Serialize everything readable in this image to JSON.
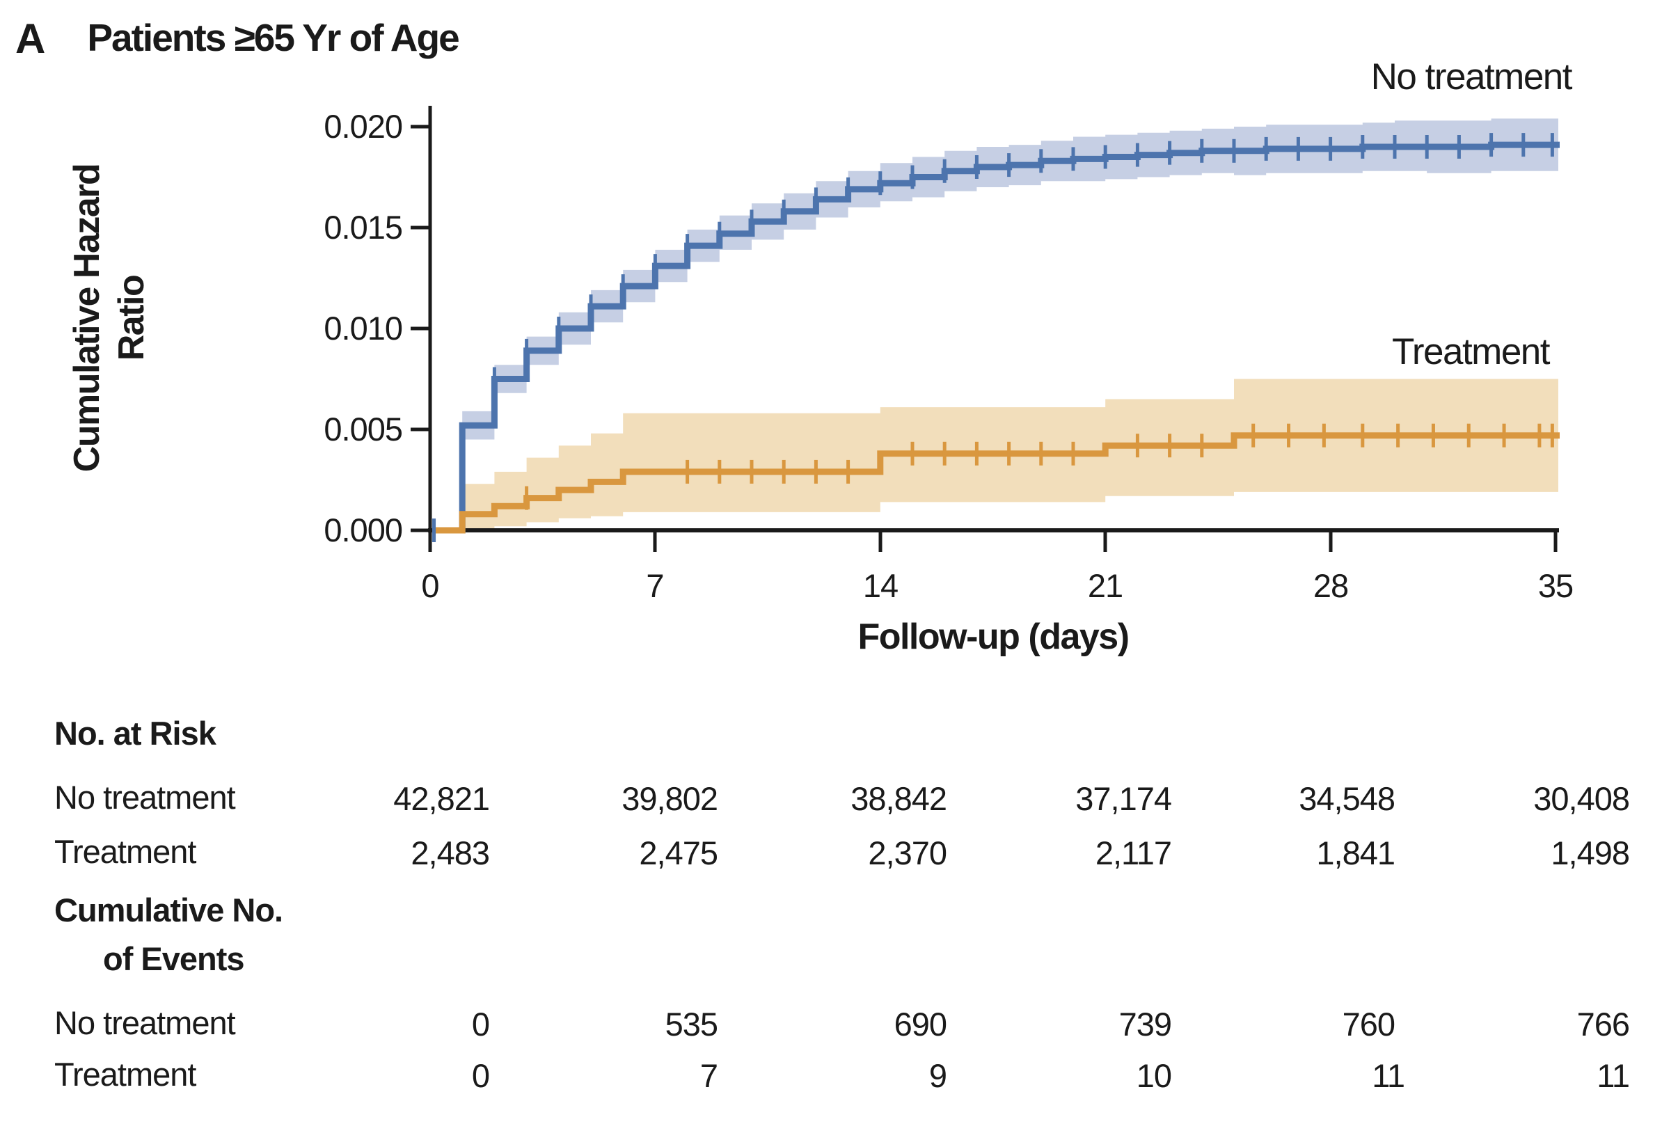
{
  "panel_label": "A",
  "title": "Patients ≥65 Yr of Age",
  "colors": {
    "no_treatment_line": "#4d74ad",
    "no_treatment_band": "#c6cfe4",
    "treatment_line": "#d9973f",
    "treatment_band": "#f2debb",
    "axis": "#1a1a1a"
  },
  "chart_data": {
    "type": "line",
    "subtype": "step-cumulative-hazard-with-ci-bands",
    "xlabel": "Follow-up (days)",
    "ylabel_line1": "Cumulative Hazard",
    "ylabel_line2": "Ratio",
    "xlim": [
      0,
      35
    ],
    "ylim": [
      0.0,
      0.02
    ],
    "xticks": [
      "0",
      "7",
      "14",
      "21",
      "28",
      "35"
    ],
    "yticks": [
      "0.000",
      "0.005",
      "0.010",
      "0.015",
      "0.020"
    ],
    "grid": false,
    "legend_position": "labels-at-line-ends",
    "series": [
      {
        "name": "No treatment",
        "color": "#4d74ad",
        "band_color": "#c6cfe4",
        "steps": [
          [
            0,
            0,
            null,
            null
          ],
          [
            1,
            0.0052,
            0.0045,
            0.0059
          ],
          [
            2,
            0.0075,
            0.0068,
            0.0082
          ],
          [
            3,
            0.0089,
            0.0082,
            0.0096
          ],
          [
            4,
            0.01,
            0.0092,
            0.0108
          ],
          [
            5,
            0.0111,
            0.0103,
            0.0119
          ],
          [
            6,
            0.0121,
            0.0113,
            0.0129
          ],
          [
            7,
            0.0131,
            0.0123,
            0.0139
          ],
          [
            8,
            0.0141,
            0.0133,
            0.0149
          ],
          [
            9,
            0.0147,
            0.0139,
            0.0156
          ],
          [
            10,
            0.0153,
            0.0144,
            0.0162
          ],
          [
            11,
            0.0158,
            0.0149,
            0.0167
          ],
          [
            12,
            0.0164,
            0.0155,
            0.0173
          ],
          [
            13,
            0.0169,
            0.016,
            0.0178
          ],
          [
            14,
            0.0172,
            0.0163,
            0.0182
          ],
          [
            15,
            0.0175,
            0.0165,
            0.0185
          ],
          [
            16,
            0.0178,
            0.0168,
            0.0188
          ],
          [
            17,
            0.018,
            0.017,
            0.019
          ],
          [
            18,
            0.0181,
            0.0171,
            0.0191
          ],
          [
            19,
            0.0183,
            0.0173,
            0.0193
          ],
          [
            20,
            0.0184,
            0.0173,
            0.0195
          ],
          [
            21,
            0.0185,
            0.0174,
            0.0196
          ],
          [
            22,
            0.0186,
            0.0175,
            0.0197
          ],
          [
            23,
            0.0187,
            0.0176,
            0.0198
          ],
          [
            24,
            0.0188,
            0.0177,
            0.0199
          ],
          [
            25,
            0.0188,
            0.0176,
            0.02
          ],
          [
            26,
            0.0189,
            0.0177,
            0.0201
          ],
          [
            27,
            0.0189,
            0.0177,
            0.0201
          ],
          [
            28,
            0.0189,
            0.0177,
            0.0201
          ],
          [
            29,
            0.019,
            0.0178,
            0.0202
          ],
          [
            30,
            0.019,
            0.0178,
            0.0203
          ],
          [
            31,
            0.019,
            0.0177,
            0.0203
          ],
          [
            32,
            0.019,
            0.0177,
            0.0203
          ],
          [
            33,
            0.0191,
            0.0178,
            0.0204
          ],
          [
            34,
            0.0191,
            0.0178,
            0.0204
          ]
        ],
        "censor_days": [
          0.12,
          2,
          3,
          4,
          5,
          6,
          7,
          8,
          9,
          10,
          11,
          12,
          13,
          14,
          15,
          16,
          17,
          18,
          19,
          20,
          21,
          22,
          23,
          24,
          25,
          26,
          27,
          28,
          29,
          30,
          31,
          32,
          33,
          34,
          34.9
        ]
      },
      {
        "name": "Treatment",
        "color": "#d9973f",
        "band_color": "#f2debb",
        "steps": [
          [
            0,
            0,
            null,
            null
          ],
          [
            1,
            0.0008,
            0.0001,
            0.0023
          ],
          [
            2,
            0.0012,
            0.0002,
            0.0029
          ],
          [
            3,
            0.0016,
            0.0004,
            0.0036
          ],
          [
            4,
            0.002,
            0.0006,
            0.0042
          ],
          [
            5,
            0.0024,
            0.0007,
            0.0048
          ],
          [
            6,
            0.0029,
            0.0009,
            0.0058
          ],
          [
            14,
            0.0038,
            0.0014,
            0.0061
          ],
          [
            21,
            0.0042,
            0.0017,
            0.0065
          ],
          [
            25,
            0.0047,
            0.0019,
            0.0075
          ]
        ],
        "censor_days": [
          3,
          8,
          9,
          10,
          11,
          12,
          13,
          15,
          16,
          17,
          18,
          19,
          20,
          22,
          23,
          24,
          25.6,
          26.7,
          27.8,
          29,
          30.1,
          31.2,
          32.3,
          33.4,
          34.5,
          34.9
        ]
      }
    ]
  },
  "risk_table": {
    "title": "No. at Risk",
    "rows": [
      {
        "label": "No treatment",
        "values": [
          "42,821",
          "39,802",
          "38,842",
          "37,174",
          "34,548",
          "30,408"
        ]
      },
      {
        "label": "Treatment",
        "values": [
          "2,483",
          "2,475",
          "2,370",
          "2,117",
          "1,841",
          "1,498"
        ]
      }
    ]
  },
  "events_table": {
    "title_line1": "Cumulative No.",
    "title_line2": "of Events",
    "rows": [
      {
        "label": "No treatment",
        "values": [
          "0",
          "535",
          "690",
          "739",
          "760",
          "766"
        ]
      },
      {
        "label": "Treatment",
        "values": [
          "0",
          "7",
          "9",
          "10",
          "11",
          "11"
        ]
      }
    ]
  }
}
